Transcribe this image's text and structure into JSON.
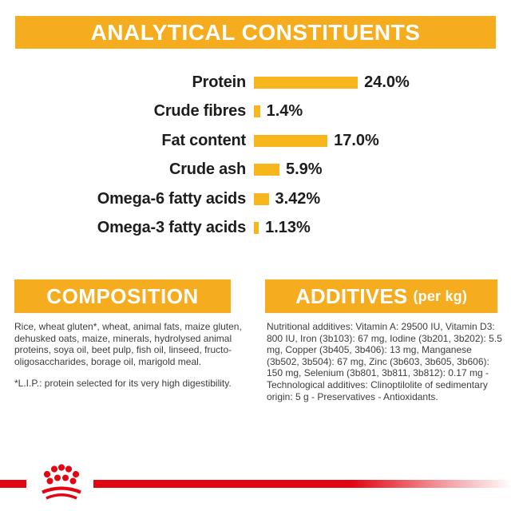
{
  "header": {
    "title": "ANALYTICAL CONSTITUENTS"
  },
  "chart_data": {
    "type": "bar",
    "orientation": "horizontal",
    "title": "ANALYTICAL CONSTITUENTS",
    "categories": [
      "Protein",
      "Crude fibres",
      "Fat content",
      "Crude ash",
      "Omega-6 fatty acids",
      "Omega-3 fatty acids"
    ],
    "values": [
      24.0,
      1.4,
      17.0,
      5.9,
      3.42,
      1.13
    ],
    "value_labels": [
      "24.0%",
      "1.4%",
      "17.0%",
      "5.9%",
      "3.42%",
      "1.13%"
    ],
    "unit": "%",
    "xlim": [
      0,
      26
    ],
    "grid": false,
    "legend": "none",
    "bar_color": "#F7B61B"
  },
  "composition": {
    "title": "COMPOSITION",
    "body": "Rice, wheat gluten*, wheat, animal fats, maize gluten, dehusked oats, maize, minerals, hydrolysed animal proteins, soya oil, beet pulp, fish oil, linseed, fructo-oligosaccharides, borage oil, marigold meal.",
    "footnote": "*L.I.P.: protein selected for its very high digestibility."
  },
  "additives": {
    "title": "ADDITIVES",
    "title_suffix": "(per kg)",
    "body": "Nutritional additives: Vitamin A: 29500 IU, Vitamin D3: 800 IU, Iron (3b103): 67 mg, Iodine (3b201, 3b202): 5.5 mg, Copper (3b405, 3b406): 13 mg, Manganese (3b502, 3b504): 67 mg, Zinc (3b603, 3b605, 3b606): 150 mg, Selenium (3b801, 3b811, 3b812): 0.17 mg - Technological additives: Clinoptilolite of sedimentary origin: 5 g - Preservatives - Antioxidants."
  },
  "footer": {
    "logo": "royal-canin-crown"
  },
  "colors": {
    "accent_gold": "#F5AC1E",
    "bar_gold": "#F7B61B",
    "brand_red": "#E20613",
    "text_dark": "#1d1d1b"
  }
}
